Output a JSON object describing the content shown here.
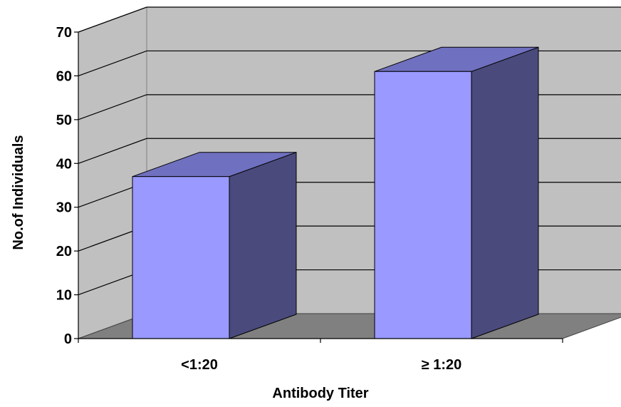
{
  "chart_data": {
    "type": "bar",
    "style": "3d-column",
    "categories": [
      "<1:20",
      "≥ 1:20"
    ],
    "values": [
      37,
      61
    ],
    "xlabel": "Antibody Titer",
    "ylabel": "No.of Individuals",
    "ylim": [
      0,
      70
    ],
    "yticks": [
      0,
      10,
      20,
      30,
      40,
      50,
      60,
      70
    ],
    "grid": true,
    "legend": "none",
    "colors": {
      "bar_front": "#9999ff",
      "bar_top": "#7070c0",
      "bar_side": "#4a4a7c",
      "back_wall": "#c0c0c0",
      "side_wall": "#c0c0c0",
      "floor": "#808080"
    }
  }
}
